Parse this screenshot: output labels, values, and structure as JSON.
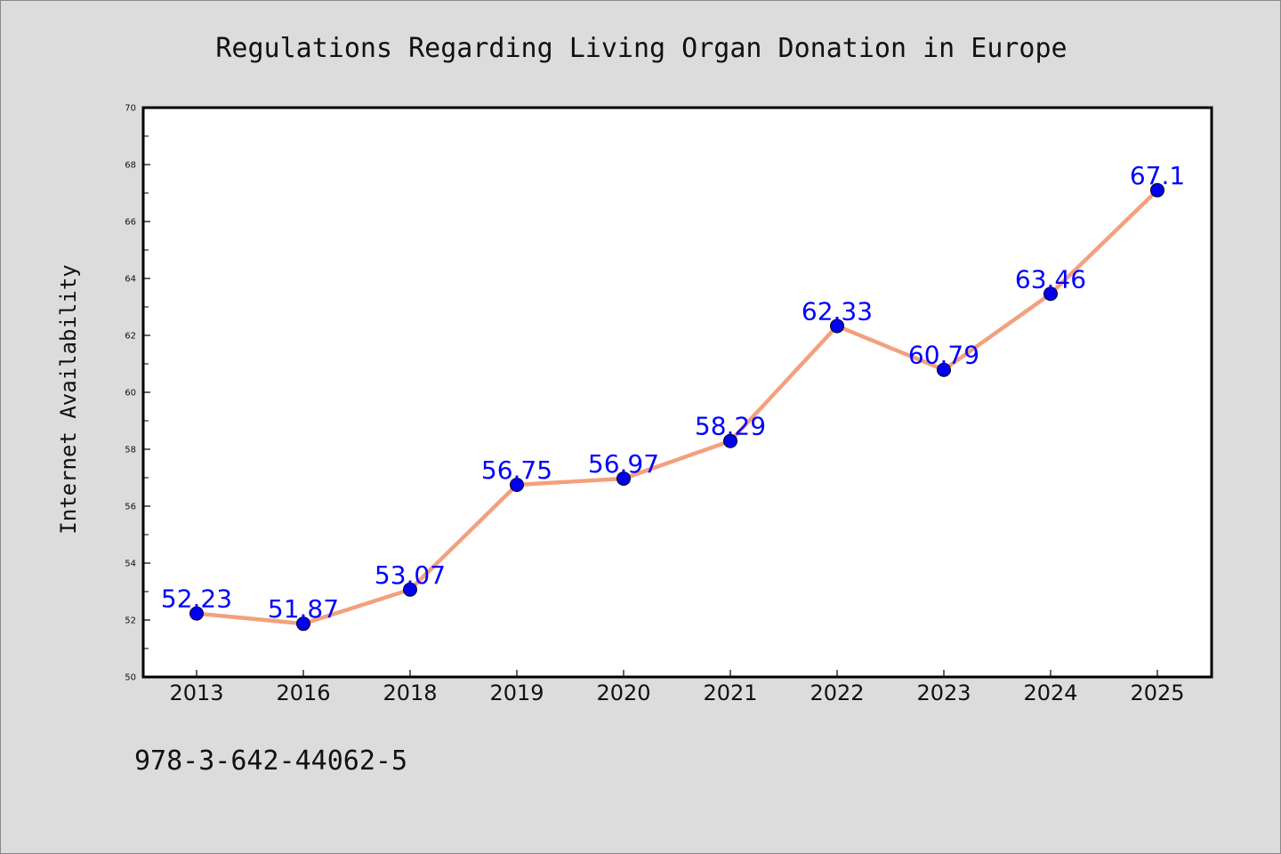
{
  "chart_data": {
    "type": "line",
    "title": "Regulations Regarding Living Organ Donation in Europe",
    "xlabel": "",
    "ylabel": "Internet Availability",
    "categories": [
      "2013",
      "2016",
      "2018",
      "2019",
      "2020",
      "2021",
      "2022",
      "2023",
      "2024",
      "2025"
    ],
    "series": [
      {
        "values": [
          52.23,
          51.87,
          53.07,
          56.75,
          56.97,
          58.29,
          62.33,
          60.79,
          63.46,
          67.1
        ]
      }
    ],
    "data_labels": [
      "52.23",
      "51.87",
      "53.07",
      "56.75",
      "56.97",
      "58.29",
      "62.33",
      "60.79",
      "63.46",
      "67.1"
    ],
    "ylim": [
      50,
      70
    ],
    "yticks": [
      "50",
      "52",
      "54",
      "56",
      "58",
      "60",
      "62",
      "64",
      "66",
      "68",
      "70"
    ],
    "grid": false,
    "legend": "none",
    "line_color": "#f4a07e",
    "marker_color": "#0000ee",
    "label_color": "#0000ff",
    "annotation": "978-3-642-44062-5"
  }
}
